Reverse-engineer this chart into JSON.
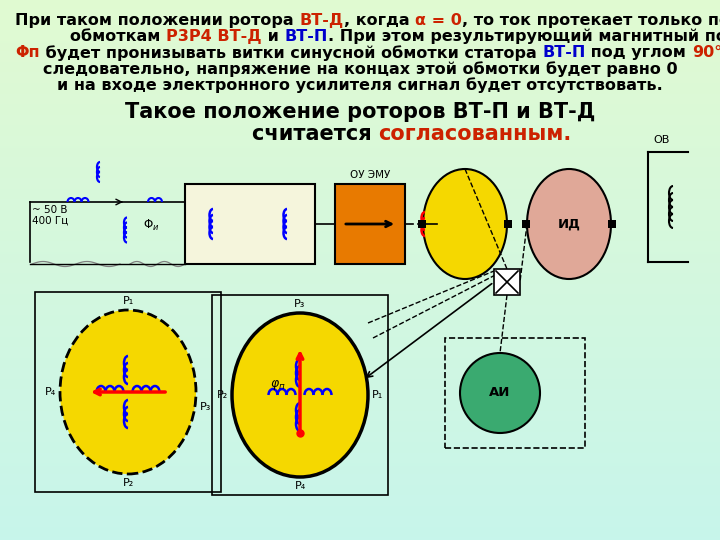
{
  "text_black": "#000000",
  "text_red": "#cc2200",
  "text_blue": "#0000cc",
  "yellow": "#f5d800",
  "orange_box": "#e87a00",
  "pink_motor": "#e0a898",
  "teal_motor": "#3aaa70",
  "bg_tl_r": 0.78,
  "bg_tl_g": 0.96,
  "bg_tl_b": 0.92,
  "bg_br_r": 0.88,
  "bg_br_g": 0.98,
  "bg_br_b": 0.82,
  "label_ou_emu": "ОУ ЭМУ",
  "label_id": "ИД",
  "label_ov": "ОВ",
  "label_ai": "АИ",
  "label_phi": "φп",
  "label_Phiu": "Φи"
}
